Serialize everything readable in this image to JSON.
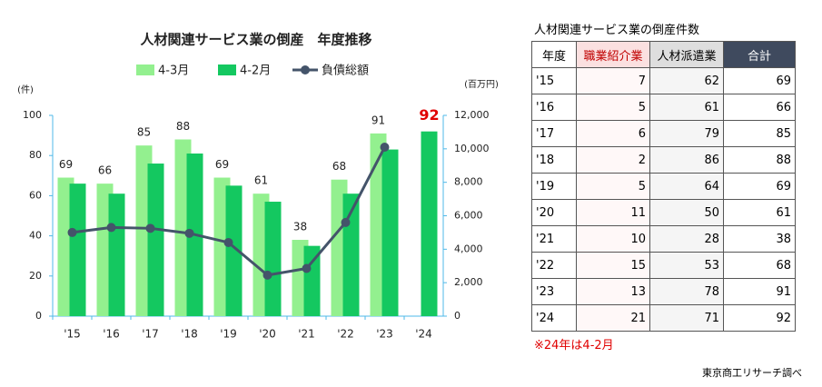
{
  "chart_data": {
    "type": "bar_line",
    "title": "人材関連サービス業の倒産　年度推移",
    "y_unit": "(件)",
    "y2_unit": "(百万円)",
    "categories": [
      "'15",
      "'16",
      "'17",
      "'18",
      "'19",
      "'20",
      "'21",
      "'22",
      "'23",
      "'24"
    ],
    "series": [
      {
        "name": "4-3月",
        "color": "#93f08f",
        "show_labels": true,
        "values": [
          69,
          66,
          85,
          88,
          69,
          61,
          38,
          68,
          91,
          null
        ]
      },
      {
        "name": "4-2月",
        "color": "#14c860",
        "label_color": "#e00000",
        "values": [
          66,
          61,
          76,
          81,
          65,
          57,
          35,
          61,
          83,
          92
        ],
        "value_labels": [
          null,
          null,
          null,
          null,
          null,
          null,
          null,
          null,
          null,
          "92"
        ]
      },
      {
        "name": "負債総額",
        "type": "line",
        "axis": "y2",
        "color": "#44546a",
        "values": [
          5000,
          5300,
          5250,
          4950,
          4400,
          2450,
          2850,
          5600,
          10100,
          null
        ]
      }
    ],
    "ylim": [
      0,
      100
    ],
    "yticks": [
      0,
      20,
      40,
      60,
      80,
      100
    ],
    "y2lim": [
      0,
      12000
    ],
    "y2ticks": [
      0,
      {
        "value": 2000,
        "label": "2,000"
      },
      {
        "value": 4000,
        "label": "4,000"
      },
      {
        "value": 6000,
        "label": "6,000"
      },
      {
        "value": 8000,
        "label": "8,000"
      },
      {
        "value": 10000,
        "label": "10,000"
      },
      {
        "value": 12000,
        "label": "12,000"
      }
    ],
    "grid": false
  },
  "table": {
    "title": "人材関連サービス業の倒産件数",
    "header": [
      "年度",
      "職業紹介業",
      "人材派遣業",
      "合計"
    ],
    "rows": [
      [
        "'15",
        "7",
        "62",
        "69"
      ],
      [
        "'16",
        "5",
        "61",
        "66"
      ],
      [
        "'17",
        "6",
        "79",
        "85"
      ],
      [
        "'18",
        "2",
        "86",
        "88"
      ],
      [
        "'19",
        "5",
        "64",
        "69"
      ],
      [
        "'20",
        "11",
        "50",
        "61"
      ],
      [
        "'21",
        "10",
        "28",
        "38"
      ],
      [
        "'22",
        "15",
        "53",
        "68"
      ],
      [
        "'23",
        "13",
        "78",
        "91"
      ],
      [
        "'24",
        "21",
        "71",
        "92"
      ]
    ],
    "note": "※24年は4-2月"
  },
  "source": "東京商工リサーチ調べ"
}
